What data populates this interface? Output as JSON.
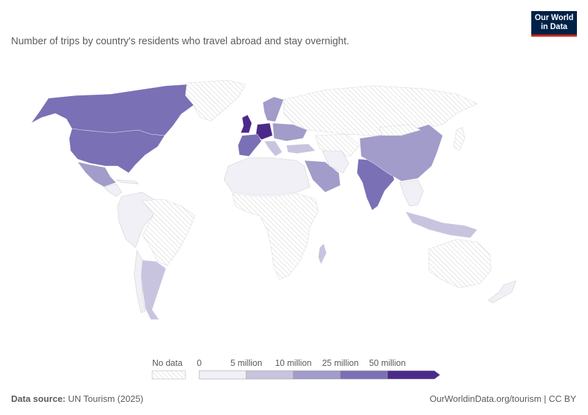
{
  "header": {
    "subtitle": "Number of trips by country's residents who travel abroad and stay overnight.",
    "logo_line1": "Our World",
    "logo_line2": "in Data"
  },
  "legend": {
    "no_data_label": "No data",
    "bins": [
      {
        "label": "0",
        "color": "#f1f0f7"
      },
      {
        "label": "5 million",
        "color": "#c8c4e0"
      },
      {
        "label": "10 million",
        "color": "#a19cc9"
      },
      {
        "label": "25 million",
        "color": "#7a70b5"
      },
      {
        "label": "50 million",
        "color": "#4b2a8a"
      }
    ]
  },
  "colors": {
    "no_data_hatch": "#d5d5d5",
    "border": "#bdbdbd",
    "logo_bg": "#002147",
    "logo_accent": "#ce261e"
  },
  "footer": {
    "source_label": "Data source:",
    "source_value": "UN Tourism (2025)",
    "url": "OurWorldinData.org/tourism | CC BY"
  }
}
